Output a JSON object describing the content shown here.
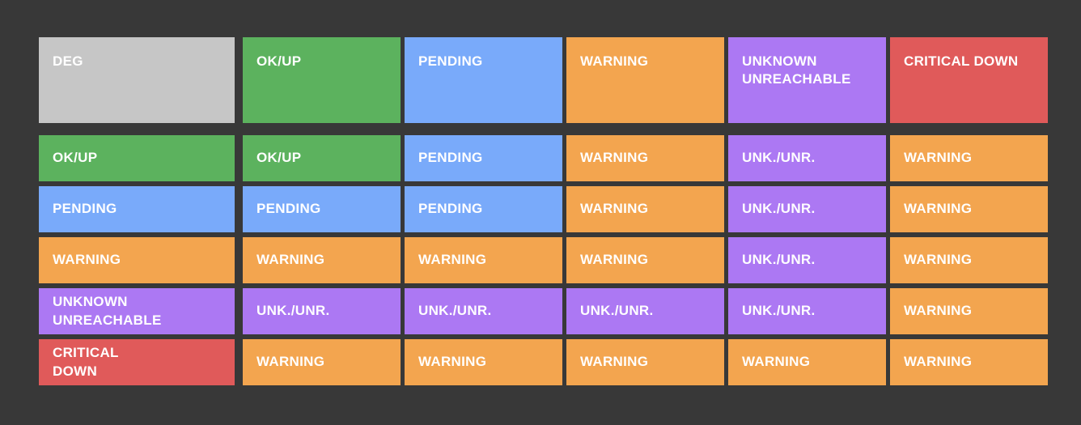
{
  "background": "#383838",
  "text_color": "#ffffff",
  "colors": {
    "deg": "#c6c6c6",
    "ok": "#5cb25e",
    "pending": "#79aafa",
    "warning": "#f3a54f",
    "unknown": "#ac78f3",
    "critical": "#e05a5a"
  },
  "header": {
    "corner": {
      "label": "DEG",
      "state": "deg"
    },
    "columns": [
      {
        "label": "OK/UP",
        "state": "ok"
      },
      {
        "label": "PENDING",
        "state": "pending"
      },
      {
        "label": "WARNING",
        "state": "warning"
      },
      {
        "label": "UNKNOWN\nUNREACHABLE",
        "state": "unknown"
      },
      {
        "label": "CRITICAL DOWN",
        "state": "critical"
      }
    ]
  },
  "rows": [
    {
      "header": {
        "label": "OK/UP",
        "state": "ok"
      },
      "cells": [
        {
          "label": "OK/UP",
          "state": "ok"
        },
        {
          "label": "PENDING",
          "state": "pending"
        },
        {
          "label": "WARNING",
          "state": "warning"
        },
        {
          "label": "UNK./UNR.",
          "state": "unknown"
        },
        {
          "label": "WARNING",
          "state": "warning"
        }
      ]
    },
    {
      "header": {
        "label": "PENDING",
        "state": "pending"
      },
      "cells": [
        {
          "label": "PENDING",
          "state": "pending"
        },
        {
          "label": "PENDING",
          "state": "pending"
        },
        {
          "label": "WARNING",
          "state": "warning"
        },
        {
          "label": "UNK./UNR.",
          "state": "unknown"
        },
        {
          "label": "WARNING",
          "state": "warning"
        }
      ]
    },
    {
      "header": {
        "label": "WARNING",
        "state": "warning"
      },
      "cells": [
        {
          "label": "WARNING",
          "state": "warning"
        },
        {
          "label": "WARNING",
          "state": "warning"
        },
        {
          "label": "WARNING",
          "state": "warning"
        },
        {
          "label": "UNK./UNR.",
          "state": "unknown"
        },
        {
          "label": "WARNING",
          "state": "warning"
        }
      ]
    },
    {
      "header": {
        "label": "UNKNOWN\nUNREACHABLE",
        "state": "unknown"
      },
      "cells": [
        {
          "label": "UNK./UNR.",
          "state": "unknown"
        },
        {
          "label": "UNK./UNR.",
          "state": "unknown"
        },
        {
          "label": "UNK./UNR.",
          "state": "unknown"
        },
        {
          "label": "UNK./UNR.",
          "state": "unknown"
        },
        {
          "label": "WARNING",
          "state": "warning"
        }
      ]
    },
    {
      "header": {
        "label": "CRITICAL\nDOWN",
        "state": "critical"
      },
      "cells": [
        {
          "label": "WARNING",
          "state": "warning"
        },
        {
          "label": "WARNING",
          "state": "warning"
        },
        {
          "label": "WARNING",
          "state": "warning"
        },
        {
          "label": "WARNING",
          "state": "warning"
        },
        {
          "label": "WARNING",
          "state": "warning"
        }
      ]
    }
  ]
}
